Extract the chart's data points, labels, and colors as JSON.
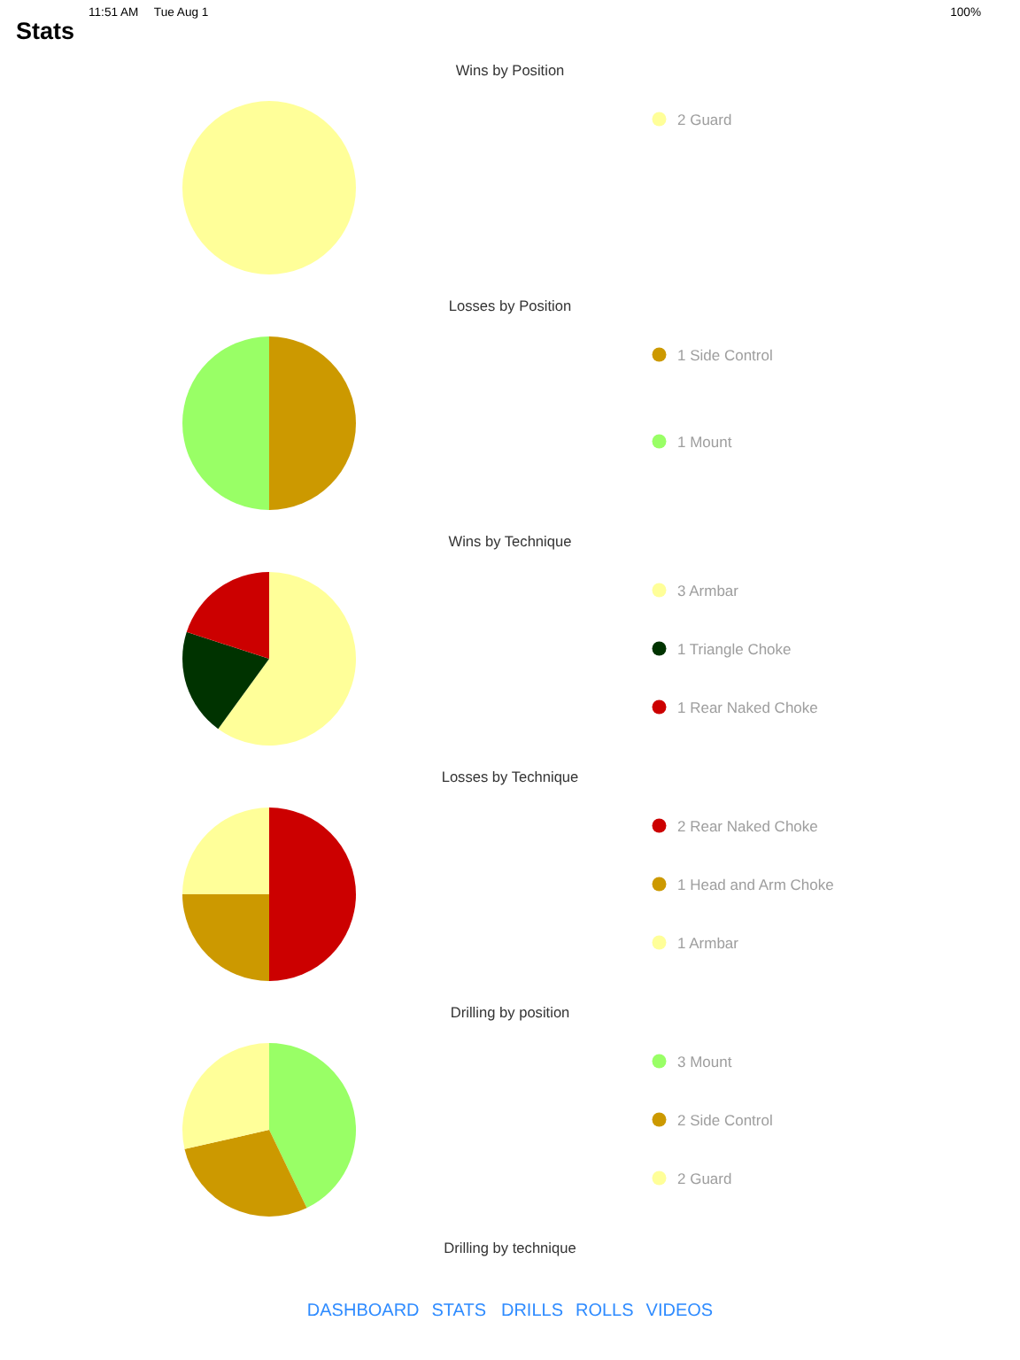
{
  "chart_data": [
    {
      "type": "other",
      "title": "Stats",
      "annotations": [
        "11:51 AM",
        "Tue Aug 1",
        "100%"
      ]
    },
    {
      "type": "pie",
      "title": "Wins by Position",
      "categories": [
        "2 Guard"
      ],
      "values": [
        2
      ],
      "colors": [
        "#ffff99"
      ],
      "legend": "right"
    },
    {
      "type": "pie",
      "title": "Losses by Position",
      "categories": [
        "1 Side Control",
        "1 Mount"
      ],
      "values": [
        1,
        1
      ],
      "colors": [
        "#cc9900",
        "#99ff66"
      ],
      "legend": "right"
    },
    {
      "type": "pie",
      "title": "Wins by Technique",
      "categories": [
        "3 Armbar",
        "1 Triangle Choke",
        "1 Rear Naked Choke"
      ],
      "values": [
        3,
        1,
        1
      ],
      "colors": [
        "#ffff99",
        "#003300",
        "#cc0000"
      ],
      "legend": "right"
    },
    {
      "type": "pie",
      "title": "Losses by Technique",
      "categories": [
        "2 Rear Naked Choke",
        "1 Head and Arm Choke",
        "1 Armbar"
      ],
      "values": [
        2,
        1,
        1
      ],
      "colors": [
        "#cc0000",
        "#cc9900",
        "#ffff99"
      ],
      "legend": "right"
    },
    {
      "type": "pie",
      "title": "Drilling by position",
      "categories": [
        "3 Mount",
        "2 Side Control",
        "2 Guard"
      ],
      "values": [
        3,
        2,
        2
      ],
      "colors": [
        "#99ff66",
        "#cc9900",
        "#ffff99"
      ],
      "legend": "right"
    },
    {
      "type": "other",
      "title": "Drilling by technique"
    },
    {
      "type": "other",
      "annotations": [
        "DASHBOARD",
        "STATS",
        "DRILLS",
        "ROLLS",
        "VIDEOS"
      ]
    }
  ]
}
